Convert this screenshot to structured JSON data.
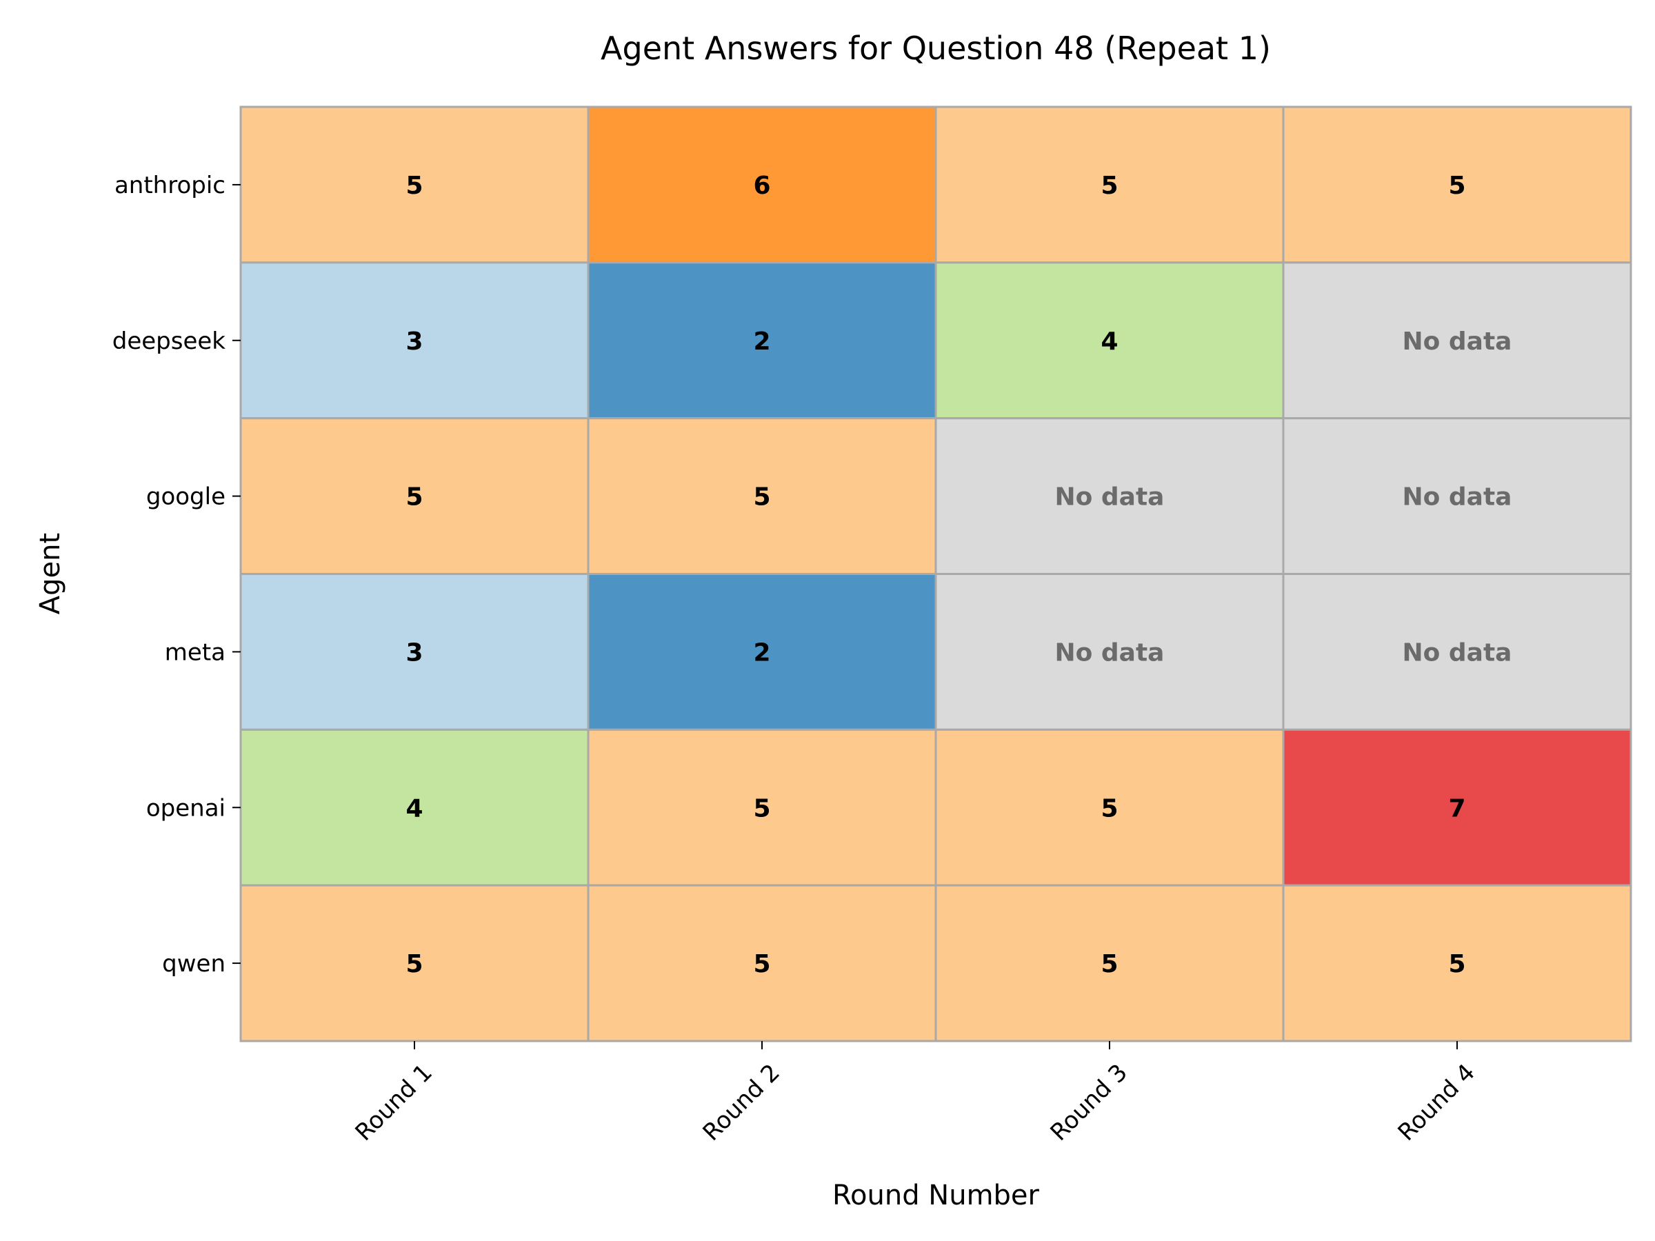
{
  "chart_data": {
    "type": "heatmap",
    "title": "Agent Answers for Question 48 (Repeat 1)",
    "xlabel": "Round Number",
    "ylabel": "Agent",
    "x_categories": [
      "Round 1",
      "Round 2",
      "Round 3",
      "Round 4"
    ],
    "y_categories": [
      "anthropic",
      "deepseek",
      "google",
      "meta",
      "openai",
      "qwen"
    ],
    "values": [
      [
        5,
        6,
        5,
        5
      ],
      [
        3,
        2,
        4,
        null
      ],
      [
        5,
        5,
        null,
        null
      ],
      [
        3,
        2,
        null,
        null
      ],
      [
        4,
        5,
        5,
        7
      ],
      [
        5,
        5,
        5,
        5
      ]
    ],
    "missing_label": "No data",
    "grid": true,
    "value_colors": {
      "2": "#4d93c4",
      "3": "#bad7ea",
      "4": "#c3e59f",
      "5": "#fdc98d",
      "6": "#fe9936",
      "7": "#e8494a"
    },
    "missing_color": "#dadada",
    "missing_text_color": "#6b6b6b",
    "cell_border_color": "#a9a9a9"
  }
}
